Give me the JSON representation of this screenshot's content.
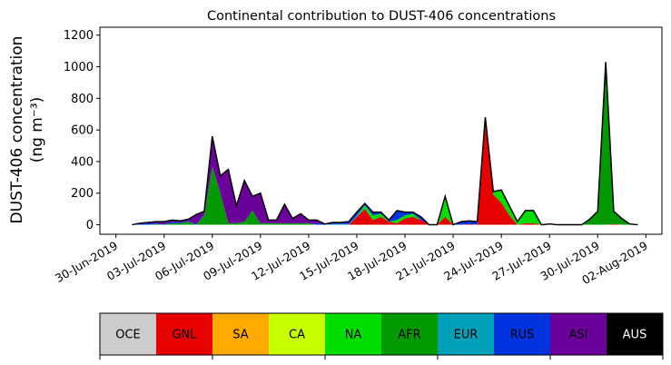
{
  "chart_data": {
    "type": "area",
    "stacked": true,
    "title": "Continental contribution to DUST-406 concentrations",
    "ylabel_line1": "DUST-406 concentration",
    "ylabel_line2": "(ng m⁻³)",
    "xlabel": "",
    "ylim": [
      -60,
      1250
    ],
    "yticks": [
      0,
      200,
      400,
      600,
      800,
      1000,
      1200
    ],
    "xlim": [
      "2019-06-29",
      "2019-08-03"
    ],
    "xticks": [
      "2019-06-30",
      "2019-07-03",
      "2019-07-06",
      "2019-07-09",
      "2019-07-12",
      "2019-07-15",
      "2019-07-18",
      "2019-07-21",
      "2019-07-24",
      "2019-07-27",
      "2019-07-30",
      "2019-08-02"
    ],
    "xtick_labels": [
      "30-Jun-2019",
      "03-Jul-2019",
      "06-Jul-2019",
      "09-Jul-2019",
      "12-Jul-2019",
      "15-Jul-2019",
      "18-Jul-2019",
      "21-Jul-2019",
      "24-Jul-2019",
      "27-Jul-2019",
      "30-Jul-2019",
      "02-Aug-2019"
    ],
    "grid": false,
    "x": [
      "2019-07-01",
      "2019-07-01T12",
      "2019-07-02",
      "2019-07-02T12",
      "2019-07-03",
      "2019-07-03T12",
      "2019-07-04",
      "2019-07-04T12",
      "2019-07-05",
      "2019-07-05T12",
      "2019-07-06",
      "2019-07-06T12",
      "2019-07-07",
      "2019-07-07T12",
      "2019-07-08",
      "2019-07-08T12",
      "2019-07-09",
      "2019-07-09T12",
      "2019-07-10",
      "2019-07-10T12",
      "2019-07-11",
      "2019-07-11T12",
      "2019-07-12",
      "2019-07-12T12",
      "2019-07-13",
      "2019-07-13T12",
      "2019-07-14",
      "2019-07-14T12",
      "2019-07-15",
      "2019-07-15T12",
      "2019-07-16",
      "2019-07-16T12",
      "2019-07-17",
      "2019-07-17T12",
      "2019-07-18",
      "2019-07-18T12",
      "2019-07-19",
      "2019-07-19T12",
      "2019-07-20",
      "2019-07-20T12",
      "2019-07-21",
      "2019-07-21T12",
      "2019-07-22",
      "2019-07-22T12",
      "2019-07-23",
      "2019-07-23T12",
      "2019-07-24",
      "2019-07-24T12",
      "2019-07-25",
      "2019-07-25T12",
      "2019-07-26",
      "2019-07-26T12",
      "2019-07-27",
      "2019-07-27T12",
      "2019-07-28",
      "2019-07-28T12",
      "2019-07-29",
      "2019-07-29T12",
      "2019-07-30",
      "2019-07-30T12",
      "2019-07-31",
      "2019-07-31T12",
      "2019-08-01",
      "2019-08-01T12"
    ],
    "series": [
      {
        "name": "OCE",
        "color": "#cccccc",
        "values": [
          0,
          0,
          0,
          0,
          0,
          0,
          0,
          0,
          0,
          0,
          0,
          0,
          0,
          0,
          0,
          0,
          0,
          0,
          0,
          0,
          0,
          0,
          0,
          0,
          0,
          0,
          0,
          0,
          0,
          0,
          0,
          0,
          0,
          0,
          0,
          0,
          0,
          0,
          0,
          0,
          0,
          0,
          0,
          0,
          0,
          0,
          0,
          0,
          0,
          0,
          0,
          0,
          0,
          0,
          0,
          0,
          0,
          0,
          0,
          0,
          0,
          0,
          0,
          0
        ]
      },
      {
        "name": "GNL",
        "color": "#e60000",
        "values": [
          0,
          0,
          0,
          0,
          0,
          0,
          0,
          0,
          0,
          0,
          0,
          0,
          0,
          0,
          0,
          0,
          0,
          0,
          0,
          0,
          0,
          0,
          0,
          0,
          0,
          0,
          0,
          0,
          50,
          100,
          30,
          50,
          20,
          10,
          40,
          50,
          30,
          0,
          0,
          50,
          0,
          0,
          5,
          0,
          680,
          190,
          140,
          60,
          0,
          10,
          10,
          0,
          0,
          0,
          0,
          0,
          0,
          0,
          0,
          0,
          5,
          0,
          0,
          0
        ]
      },
      {
        "name": "SA",
        "color": "#ffaa00",
        "values": [
          0,
          0,
          0,
          0,
          0,
          0,
          0,
          0,
          0,
          0,
          0,
          0,
          0,
          0,
          0,
          0,
          0,
          0,
          0,
          0,
          0,
          0,
          0,
          0,
          0,
          0,
          0,
          0,
          0,
          0,
          0,
          0,
          0,
          0,
          0,
          0,
          0,
          0,
          0,
          0,
          0,
          0,
          0,
          0,
          0,
          0,
          0,
          0,
          0,
          0,
          0,
          0,
          0,
          0,
          0,
          0,
          0,
          0,
          0,
          0,
          0,
          0,
          0,
          0
        ]
      },
      {
        "name": "CA",
        "color": "#c8ff00",
        "values": [
          0,
          0,
          0,
          0,
          0,
          0,
          0,
          0,
          0,
          0,
          0,
          0,
          0,
          0,
          0,
          0,
          0,
          0,
          0,
          0,
          0,
          0,
          0,
          0,
          0,
          0,
          0,
          0,
          0,
          0,
          0,
          0,
          0,
          0,
          0,
          0,
          0,
          0,
          0,
          0,
          0,
          0,
          0,
          0,
          0,
          0,
          0,
          0,
          0,
          0,
          0,
          0,
          0,
          0,
          0,
          0,
          0,
          0,
          0,
          0,
          0,
          0,
          0,
          0
        ]
      },
      {
        "name": "NA",
        "color": "#00dd00",
        "values": [
          0,
          0,
          0,
          0,
          0,
          0,
          0,
          0,
          0,
          0,
          0,
          0,
          0,
          0,
          0,
          0,
          0,
          0,
          0,
          0,
          0,
          0,
          0,
          0,
          0,
          0,
          0,
          0,
          0,
          20,
          30,
          20,
          0,
          20,
          20,
          20,
          0,
          0,
          0,
          130,
          0,
          0,
          0,
          0,
          0,
          20,
          80,
          60,
          20,
          80,
          80,
          0,
          0,
          0,
          0,
          0,
          0,
          0,
          0,
          0,
          0,
          0,
          0,
          0
        ]
      },
      {
        "name": "AFR",
        "color": "#009900",
        "values": [
          0,
          0,
          0,
          5,
          0,
          10,
          10,
          20,
          0,
          60,
          370,
          200,
          10,
          10,
          20,
          90,
          10,
          10,
          10,
          10,
          10,
          10,
          10,
          0,
          0,
          0,
          0,
          0,
          0,
          0,
          0,
          0,
          0,
          0,
          0,
          0,
          0,
          0,
          0,
          0,
          0,
          0,
          0,
          0,
          0,
          0,
          0,
          0,
          0,
          0,
          0,
          0,
          5,
          0,
          0,
          0,
          0,
          30,
          85,
          1010,
          80,
          40,
          5,
          0
        ]
      },
      {
        "name": "EUR",
        "color": "#00a0b8",
        "values": [
          0,
          0,
          0,
          0,
          0,
          0,
          0,
          0,
          0,
          0,
          0,
          0,
          0,
          0,
          0,
          0,
          0,
          0,
          0,
          0,
          0,
          0,
          0,
          0,
          0,
          5,
          5,
          5,
          10,
          5,
          0,
          0,
          0,
          0,
          0,
          0,
          0,
          0,
          0,
          0,
          0,
          0,
          0,
          0,
          0,
          0,
          0,
          0,
          0,
          0,
          0,
          0,
          0,
          0,
          0,
          0,
          0,
          0,
          0,
          0,
          0,
          0,
          0,
          0
        ]
      },
      {
        "name": "RUS",
        "color": "#0033dd",
        "values": [
          0,
          5,
          10,
          5,
          5,
          10,
          5,
          5,
          5,
          5,
          0,
          0,
          0,
          0,
          0,
          0,
          0,
          0,
          0,
          0,
          0,
          0,
          0,
          10,
          5,
          10,
          10,
          15,
          20,
          10,
          20,
          10,
          10,
          60,
          20,
          10,
          20,
          0,
          0,
          0,
          0,
          20,
          20,
          20,
          0,
          0,
          0,
          0,
          0,
          0,
          0,
          0,
          0,
          0,
          0,
          0,
          0,
          5,
          0,
          10,
          0,
          0,
          0,
          0
        ]
      },
      {
        "name": "ASI",
        "color": "#6a0099",
        "values": [
          0,
          5,
          5,
          10,
          15,
          10,
          10,
          10,
          60,
          20,
          190,
          110,
          340,
          110,
          260,
          90,
          190,
          20,
          20,
          120,
          30,
          60,
          20,
          20,
          0,
          0,
          0,
          0,
          0,
          0,
          0,
          0,
          0,
          0,
          0,
          0,
          0,
          0,
          0,
          0,
          0,
          0,
          0,
          0,
          0,
          0,
          0,
          0,
          0,
          0,
          0,
          0,
          0,
          0,
          0,
          0,
          0,
          0,
          0,
          10,
          0,
          0,
          0,
          0
        ]
      },
      {
        "name": "AUS",
        "color": "#000000",
        "values": [
          0,
          0,
          0,
          0,
          0,
          0,
          0,
          0,
          0,
          0,
          0,
          0,
          0,
          0,
          0,
          0,
          0,
          0,
          0,
          0,
          0,
          0,
          0,
          0,
          0,
          0,
          0,
          0,
          0,
          0,
          0,
          0,
          0,
          0,
          0,
          0,
          0,
          0,
          0,
          0,
          0,
          0,
          0,
          0,
          0,
          0,
          0,
          0,
          0,
          0,
          0,
          0,
          0,
          0,
          0,
          0,
          0,
          0,
          0,
          0,
          0,
          0,
          0,
          0
        ]
      }
    ]
  },
  "legend": {
    "items": [
      {
        "label": "OCE",
        "color": "#cccccc",
        "text_color": "#000000"
      },
      {
        "label": "GNL",
        "color": "#e60000",
        "text_color": "#000000"
      },
      {
        "label": "SA",
        "color": "#ffaa00",
        "text_color": "#000000"
      },
      {
        "label": "CA",
        "color": "#c8ff00",
        "text_color": "#000000"
      },
      {
        "label": "NA",
        "color": "#00dd00",
        "text_color": "#000000"
      },
      {
        "label": "AFR",
        "color": "#009900",
        "text_color": "#000000"
      },
      {
        "label": "EUR",
        "color": "#00a0b8",
        "text_color": "#000000"
      },
      {
        "label": "RUS",
        "color": "#0033dd",
        "text_color": "#000000"
      },
      {
        "label": "ASI",
        "color": "#6a0099",
        "text_color": "#000000"
      },
      {
        "label": "AUS",
        "color": "#000000",
        "text_color": "#ffffff"
      }
    ]
  }
}
